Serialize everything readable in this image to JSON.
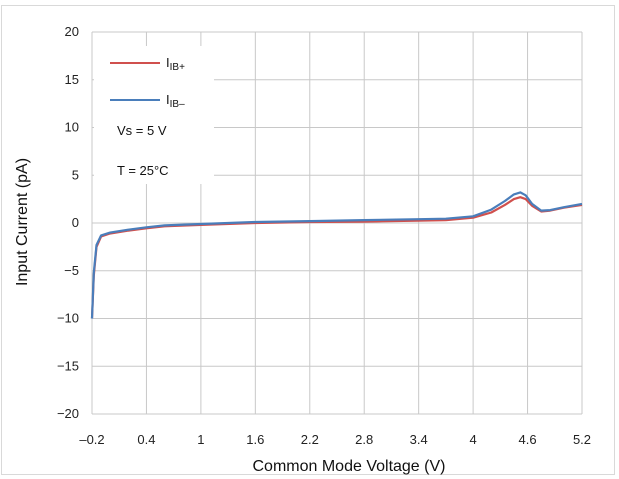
{
  "chart_data": {
    "type": "line",
    "title": "",
    "xlabel": "Common Mode Voltage (V)",
    "ylabel": "Input Current (pA)",
    "xlim": [
      -0.2,
      5.2
    ],
    "ylim": [
      -20,
      20
    ],
    "x_ticks": [
      "–0.2",
      "0.4",
      "1",
      "1.6",
      "2.2",
      "2.8",
      "3.4",
      "4",
      "4.6",
      "5.2"
    ],
    "y_ticks": [
      "20",
      "15",
      "10",
      "5",
      "0",
      "−5",
      "−10",
      "−15",
      "−20"
    ],
    "y_tick_values": [
      20,
      15,
      10,
      5,
      0,
      -5,
      -10,
      -15,
      -20
    ],
    "grid": true,
    "legend_position": "top-left",
    "annotations": [
      "Vs = 5 V",
      "T = 25°C"
    ],
    "series": [
      {
        "name_main": "I",
        "name_sub": "IB+",
        "color": "#d0504d",
        "x": [
          -0.2,
          -0.18,
          -0.15,
          -0.1,
          0,
          0.2,
          0.4,
          0.6,
          1.0,
          1.6,
          2.2,
          2.8,
          3.4,
          3.7,
          4.0,
          4.2,
          4.35,
          4.45,
          4.52,
          4.58,
          4.65,
          4.75,
          4.85,
          5.0,
          5.2
        ],
        "y": [
          -10,
          -5.5,
          -2.5,
          -1.4,
          -1.1,
          -0.8,
          -0.55,
          -0.35,
          -0.2,
          0.0,
          0.1,
          0.15,
          0.25,
          0.3,
          0.55,
          1.1,
          1.9,
          2.5,
          2.7,
          2.5,
          1.8,
          1.2,
          1.3,
          1.6,
          1.9
        ]
      },
      {
        "name_main": "I",
        "name_sub": "IB–",
        "color": "#4a7ebb",
        "x": [
          -0.2,
          -0.18,
          -0.15,
          -0.1,
          0,
          0.2,
          0.4,
          0.6,
          1.0,
          1.6,
          2.2,
          2.8,
          3.4,
          3.7,
          4.0,
          4.2,
          4.35,
          4.45,
          4.52,
          4.58,
          4.65,
          4.75,
          4.85,
          5.0,
          5.2
        ],
        "y": [
          -10,
          -5.2,
          -2.3,
          -1.3,
          -1.0,
          -0.7,
          -0.45,
          -0.25,
          -0.1,
          0.1,
          0.2,
          0.3,
          0.4,
          0.45,
          0.7,
          1.4,
          2.3,
          3.0,
          3.2,
          2.9,
          2.0,
          1.3,
          1.35,
          1.65,
          2.0
        ]
      }
    ]
  }
}
